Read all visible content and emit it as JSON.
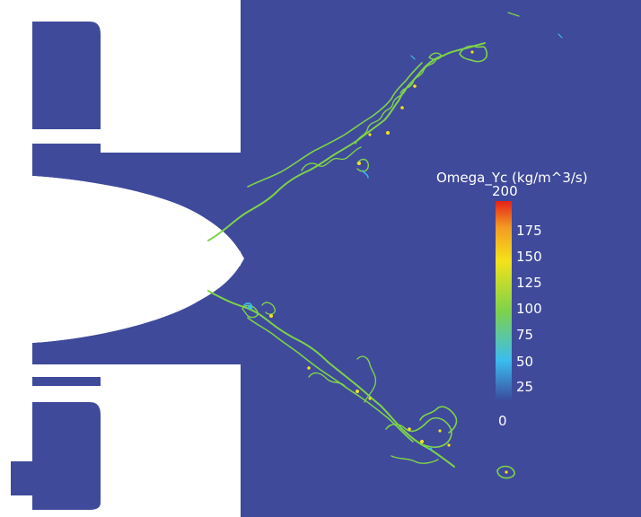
{
  "colorbar": {
    "title": "Omega_Yc (kg/m^3/s)",
    "max_label": "200",
    "ticks": [
      "175",
      "150",
      "125",
      "100",
      "75",
      "50",
      "25"
    ],
    "min_label": "0",
    "colormap": [
      "#3b4c9c",
      "#3bbcf0",
      "#7ed24a",
      "#f4e21a",
      "#f39a22",
      "#e52218"
    ]
  },
  "colors": {
    "background": "#3f4a9b",
    "flame_front": "#7ed24a",
    "flame_hot": "#f4e21a"
  }
}
